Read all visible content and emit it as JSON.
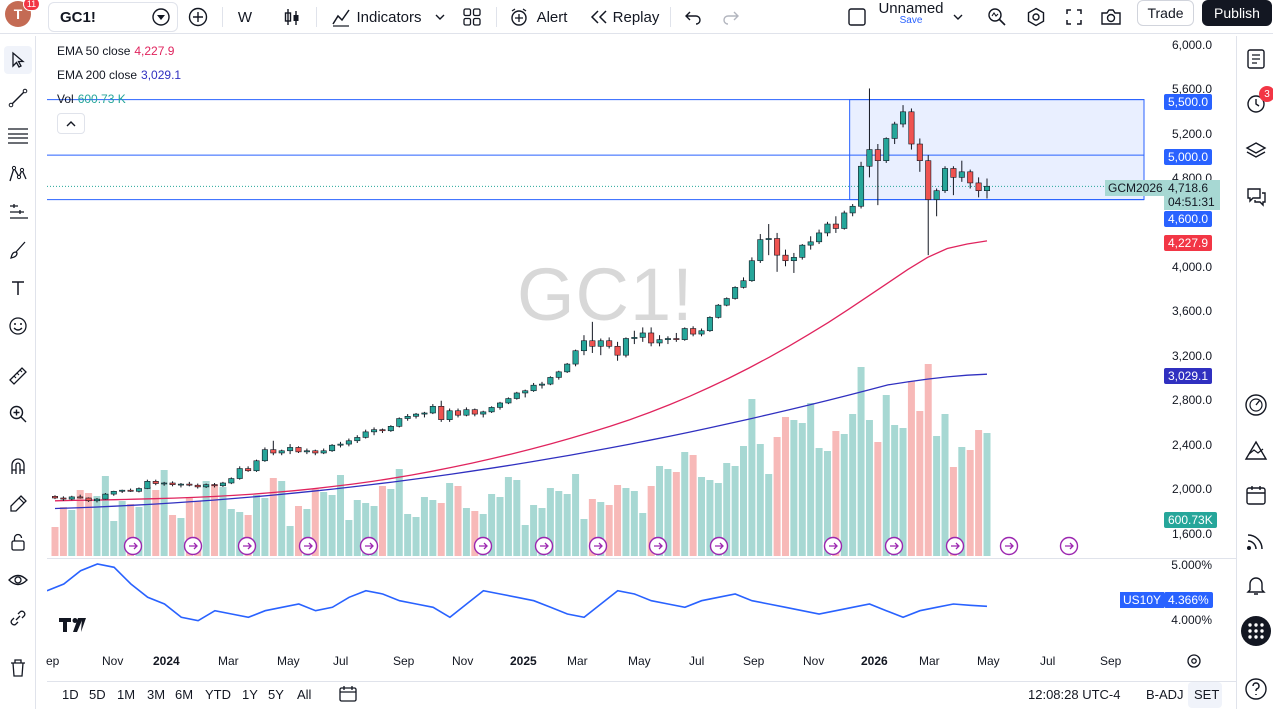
{
  "header": {
    "avatar_letter": "T",
    "notifications": "11",
    "symbol": "GC1!",
    "interval": "W",
    "indicators_label": "Indicators",
    "alert_label": "Alert",
    "replay_label": "Replay",
    "layout_name": "Unnamed",
    "layout_save": "Save",
    "trade_label": "Trade",
    "publish_label": "Publish"
  },
  "legend": {
    "ema50_label": "EMA 50 close",
    "ema50_value": "4,227.9",
    "ema200_label": "EMA 200 close",
    "ema200_value": "3,029.1",
    "vol_label": "Vol",
    "vol_value": "600.73 K"
  },
  "watermark": "GC1!",
  "price_axis": {
    "labels": [
      "6,000.0",
      "5,600.0",
      "5,200.0",
      "4,800.0",
      "4,000.0",
      "3,600.0",
      "3,200.0",
      "2,800.0",
      "2,400.0",
      "2,000.0",
      "1,600.0"
    ],
    "tag_5500": "5,500.0",
    "tag_5000": "5,000.0",
    "tag_last": "4,718.6",
    "tag_countdown": "04:51:31",
    "tag_4600": "4,600.0",
    "tag_ema50": "4,227.9",
    "tag_ema200": "3,029.1",
    "tag_vol": "600.73K",
    "symbol_tag": "GCM2026"
  },
  "osc_axis": {
    "labels": [
      "5.000%",
      "4.000%"
    ],
    "symbol_tag": "US10Y",
    "value_tag": "4.366%"
  },
  "time_axis": [
    "ep",
    "Nov",
    "2024",
    "Mar",
    "May",
    "Jul",
    "Sep",
    "Nov",
    "2025",
    "Mar",
    "May",
    "Jul",
    "Sep",
    "Nov",
    "2026",
    "Mar",
    "May",
    "Jul",
    "Sep"
  ],
  "bottom": {
    "ranges": [
      "1D",
      "5D",
      "1M",
      "3M",
      "6M",
      "YTD",
      "1Y",
      "5Y",
      "All"
    ],
    "clock": "12:08:28 UTC-4",
    "badj": "B-ADJ",
    "set": "SET"
  },
  "right_toolbar": {
    "alerts_badge": "3"
  },
  "colors": {
    "up": "#26a69a",
    "down": "#ef5350",
    "ema50": "#e0245e",
    "ema200": "#3030c0",
    "hline": "#2962ff",
    "osc": "#2962ff",
    "vol_up": "#a7d8d3",
    "vol_down": "#f7b9b8"
  },
  "chart_data": {
    "type": "candlestick",
    "interval": "weekly",
    "symbol": "GC1!",
    "ylim": [
      1500,
      6100
    ],
    "ohlc": [
      [
        1930,
        1940,
        1905,
        1915
      ],
      [
        1915,
        1930,
        1890,
        1905
      ],
      [
        1905,
        1935,
        1895,
        1925
      ],
      [
        1925,
        1945,
        1910,
        1915
      ],
      [
        1915,
        1920,
        1880,
        1890
      ],
      [
        1890,
        1915,
        1875,
        1905
      ],
      [
        1905,
        1960,
        1900,
        1950
      ],
      [
        1950,
        1980,
        1935,
        1975
      ],
      [
        1975,
        1990,
        1960,
        1985
      ],
      [
        1985,
        2000,
        1970,
        1975
      ],
      [
        1975,
        2010,
        1965,
        2000
      ],
      [
        2000,
        2080,
        1995,
        2065
      ],
      [
        2065,
        2080,
        2030,
        2045
      ],
      [
        2045,
        2060,
        2025,
        2050
      ],
      [
        2050,
        2065,
        2020,
        2035
      ],
      [
        2035,
        2050,
        2010,
        2040
      ],
      [
        2040,
        2060,
        2020,
        2030
      ],
      [
        2030,
        2045,
        2000,
        2015
      ],
      [
        2015,
        2045,
        2005,
        2035
      ],
      [
        2035,
        2050,
        2010,
        2025
      ],
      [
        2025,
        2060,
        2015,
        2050
      ],
      [
        2050,
        2100,
        2040,
        2090
      ],
      [
        2090,
        2200,
        2080,
        2180
      ],
      [
        2180,
        2200,
        2150,
        2160
      ],
      [
        2160,
        2260,
        2150,
        2250
      ],
      [
        2250,
        2370,
        2240,
        2350
      ],
      [
        2350,
        2430,
        2300,
        2320
      ],
      [
        2320,
        2350,
        2300,
        2340
      ],
      [
        2340,
        2400,
        2310,
        2370
      ],
      [
        2370,
        2380,
        2320,
        2330
      ],
      [
        2330,
        2360,
        2310,
        2340
      ],
      [
        2340,
        2350,
        2300,
        2320
      ],
      [
        2320,
        2360,
        2310,
        2340
      ],
      [
        2340,
        2400,
        2330,
        2390
      ],
      [
        2390,
        2420,
        2370,
        2400
      ],
      [
        2400,
        2450,
        2380,
        2430
      ],
      [
        2430,
        2480,
        2410,
        2460
      ],
      [
        2460,
        2530,
        2450,
        2510
      ],
      [
        2510,
        2550,
        2480,
        2530
      ],
      [
        2530,
        2540,
        2500,
        2520
      ],
      [
        2520,
        2570,
        2510,
        2560
      ],
      [
        2560,
        2640,
        2550,
        2630
      ],
      [
        2630,
        2670,
        2610,
        2650
      ],
      [
        2650,
        2680,
        2630,
        2670
      ],
      [
        2670,
        2690,
        2640,
        2680
      ],
      [
        2680,
        2760,
        2670,
        2740
      ],
      [
        2740,
        2790,
        2600,
        2620
      ],
      [
        2620,
        2720,
        2600,
        2700
      ],
      [
        2700,
        2720,
        2640,
        2660
      ],
      [
        2660,
        2730,
        2650,
        2710
      ],
      [
        2710,
        2720,
        2650,
        2670
      ],
      [
        2670,
        2700,
        2640,
        2690
      ],
      [
        2690,
        2740,
        2680,
        2730
      ],
      [
        2730,
        2780,
        2710,
        2770
      ],
      [
        2770,
        2820,
        2760,
        2810
      ],
      [
        2810,
        2870,
        2800,
        2860
      ],
      [
        2860,
        2890,
        2820,
        2880
      ],
      [
        2880,
        2950,
        2870,
        2930
      ],
      [
        2930,
        2960,
        2900,
        2940
      ],
      [
        2940,
        3010,
        2930,
        3000
      ],
      [
        3000,
        3060,
        2980,
        3050
      ],
      [
        3050,
        3130,
        3040,
        3120
      ],
      [
        3120,
        3250,
        3100,
        3240
      ],
      [
        3240,
        3380,
        3200,
        3330
      ],
      [
        3330,
        3500,
        3220,
        3280
      ],
      [
        3280,
        3350,
        3200,
        3330
      ],
      [
        3330,
        3360,
        3260,
        3280
      ],
      [
        3280,
        3320,
        3150,
        3200
      ],
      [
        3200,
        3360,
        3180,
        3350
      ],
      [
        3350,
        3420,
        3300,
        3360
      ],
      [
        3360,
        3450,
        3320,
        3400
      ],
      [
        3400,
        3450,
        3280,
        3310
      ],
      [
        3310,
        3380,
        3280,
        3340
      ],
      [
        3340,
        3370,
        3300,
        3350
      ],
      [
        3350,
        3400,
        3320,
        3340
      ],
      [
        3340,
        3450,
        3330,
        3440
      ],
      [
        3440,
        3460,
        3370,
        3390
      ],
      [
        3390,
        3440,
        3370,
        3420
      ],
      [
        3420,
        3550,
        3410,
        3540
      ],
      [
        3540,
        3660,
        3530,
        3650
      ],
      [
        3650,
        3720,
        3640,
        3710
      ],
      [
        3710,
        3820,
        3700,
        3810
      ],
      [
        3810,
        3900,
        3800,
        3870
      ],
      [
        3870,
        4080,
        3860,
        4050
      ],
      [
        4050,
        4290,
        4030,
        4240
      ],
      [
        4240,
        4380,
        4100,
        4250
      ],
      [
        4250,
        4300,
        3950,
        4100
      ],
      [
        4100,
        4150,
        4000,
        4050
      ],
      [
        4050,
        4120,
        3940,
        4080
      ],
      [
        4080,
        4200,
        4060,
        4190
      ],
      [
        4190,
        4270,
        4150,
        4220
      ],
      [
        4220,
        4330,
        4200,
        4300
      ],
      [
        4300,
        4400,
        4270,
        4380
      ],
      [
        4380,
        4450,
        4300,
        4340
      ],
      [
        4340,
        4500,
        4330,
        4480
      ],
      [
        4480,
        4560,
        4450,
        4540
      ],
      [
        4540,
        4940,
        4520,
        4900
      ],
      [
        4900,
        5600,
        4800,
        5050
      ],
      [
        5050,
        5100,
        4550,
        4950
      ],
      [
        4950,
        5160,
        4930,
        5150
      ],
      [
        5150,
        5300,
        5100,
        5280
      ],
      [
        5280,
        5450,
        5250,
        5390
      ],
      [
        5390,
        5420,
        5050,
        5100
      ],
      [
        5100,
        5150,
        4850,
        4950
      ],
      [
        4950,
        5000,
        4100,
        4600
      ],
      [
        4600,
        4700,
        4450,
        4680
      ],
      [
        4680,
        4900,
        4660,
        4880
      ],
      [
        4880,
        4900,
        4640,
        4800
      ],
      [
        4800,
        4950,
        4760,
        4850
      ],
      [
        4850,
        4870,
        4700,
        4750
      ],
      [
        4750,
        4800,
        4620,
        4680
      ],
      [
        4680,
        4790,
        4610,
        4720
      ]
    ],
    "ema50": [
      1890,
      1893,
      1896,
      1900,
      1904,
      1909,
      1914,
      1920,
      1928,
      1938,
      1950,
      1964,
      1980,
      1998,
      2018,
      2040,
      2064,
      2092,
      2122,
      2155,
      2190,
      2228,
      2268,
      2310,
      2355,
      2402,
      2452,
      2505,
      2560,
      2620,
      2685,
      2755,
      2830,
      2910,
      2995,
      3085,
      3180,
      3280,
      3385,
      3495,
      3610,
      3730,
      3850,
      3970,
      4080,
      4160,
      4200,
      4228
    ],
    "ema200": [
      1820,
      1826,
      1833,
      1841,
      1850,
      1860,
      1871,
      1883,
      1896,
      1910,
      1925,
      1941,
      1958,
      1976,
      1995,
      2015,
      2036,
      2058,
      2081,
      2105,
      2130,
      2156,
      2183,
      2211,
      2240,
      2270,
      2301,
      2333,
      2366,
      2400,
      2435,
      2471,
      2508,
      2546,
      2585,
      2625,
      2666,
      2708,
      2751,
      2795,
      2840,
      2886,
      2933,
      2960,
      2985,
      3005,
      3020,
      3029
    ],
    "hlines": [
      5500,
      5000,
      4600
    ],
    "last_price": 4718.6,
    "volume_last": "600.73K",
    "us10y_last": 4.366,
    "us10y_range": [
      3.8,
      5.0
    ]
  }
}
